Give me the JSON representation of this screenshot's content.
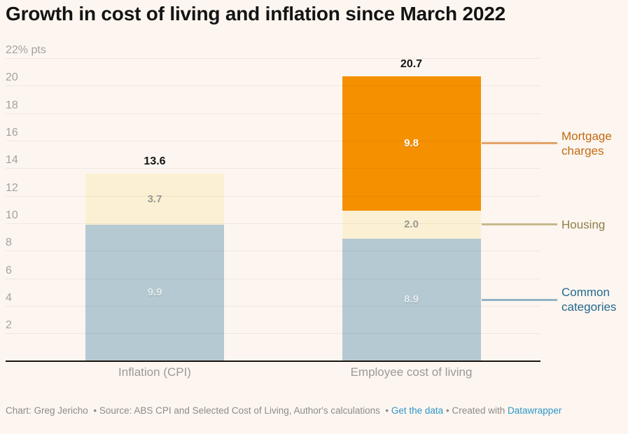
{
  "header": {
    "title": "Growth in cost of living and inflation since March 2022"
  },
  "chart_data": {
    "type": "bar",
    "stacked": true,
    "title": "Growth in cost of living and inflation since March 2022",
    "categories": [
      "Inflation (CPI)",
      "Employee cost of living"
    ],
    "series": [
      {
        "name": "Common categories",
        "values": [
          9.9,
          8.9
        ],
        "color": "#b5c9d2",
        "label_style": "light"
      },
      {
        "name": "Housing",
        "values": [
          3.7,
          2.0
        ],
        "color": "#fcf0d4",
        "label_style": "gray"
      },
      {
        "name": "Mortgage charges",
        "values": [
          0,
          9.8
        ],
        "color": "#f59000",
        "label_style": "white"
      }
    ],
    "totals": [
      13.6,
      20.7
    ],
    "ylim": [
      0,
      22
    ],
    "grid": true,
    "grid_values": [
      2,
      4,
      6,
      8,
      10,
      12,
      14,
      16,
      18,
      20,
      22
    ],
    "axis_top_label": "22% pts",
    "legend_position": "right",
    "legend": [
      {
        "label": "Mortgage charges",
        "text_color": "#c36a13",
        "line_color": "#e2a368",
        "anchor_value": 15.8
      },
      {
        "label": "Housing",
        "text_color": "#8e7d48",
        "line_color": "#c6b88c",
        "anchor_value": 9.9
      },
      {
        "label": "Common categories",
        "text_color": "#23698f",
        "line_color": "#92b3c3",
        "anchor_value": 4.45
      }
    ]
  },
  "footer": {
    "credit": "Chart: Greg Jericho",
    "separator": "•",
    "source": "Source: ABS CPI and Selected Cost of Living, Author's calculations",
    "get_data_link": "Get the data",
    "created_with": "Created with",
    "datawrapper_link": "Datawrapper"
  }
}
